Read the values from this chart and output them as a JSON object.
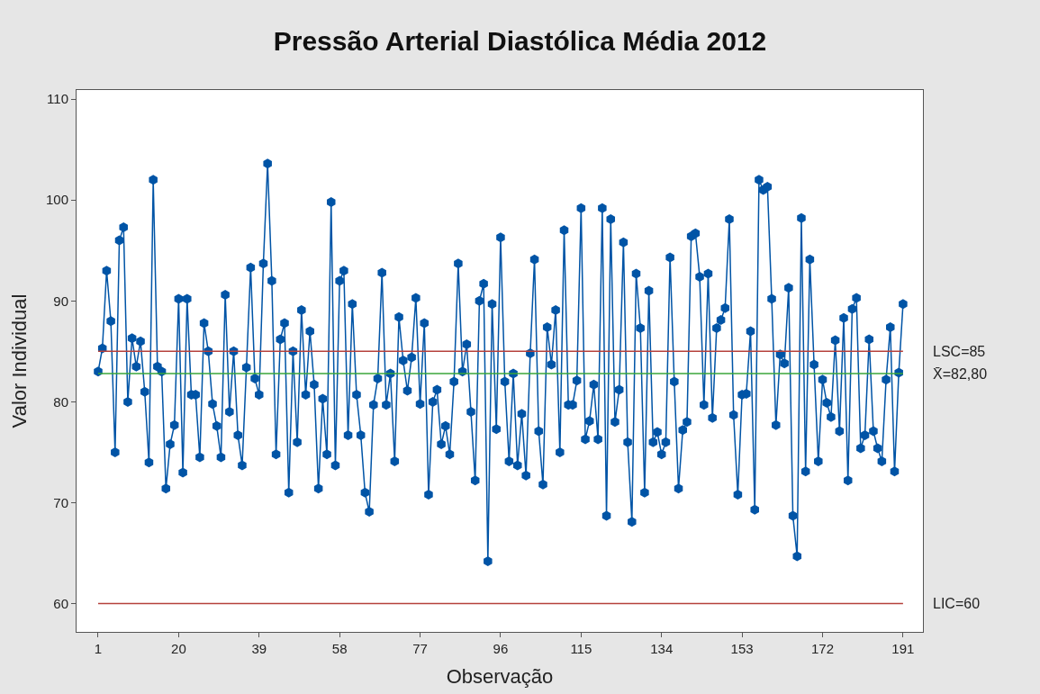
{
  "chart_data": {
    "type": "line",
    "title": "Pressão Arterial Diastólica Média 2012",
    "xlabel": "Observação",
    "ylabel": "Valor Individual",
    "x": [
      1,
      2,
      3,
      4,
      5,
      6,
      7,
      8,
      9,
      10,
      11,
      12,
      13,
      14,
      15,
      16,
      17,
      18,
      19,
      20,
      21,
      22,
      23,
      24,
      25,
      26,
      27,
      28,
      29,
      30,
      31,
      32,
      33,
      34,
      35,
      36,
      37,
      38,
      39,
      40,
      41,
      42,
      43,
      44,
      45,
      46,
      47,
      48,
      49,
      50,
      51,
      52,
      53,
      54,
      55,
      56,
      57,
      58,
      59,
      60,
      61,
      62,
      63,
      64,
      65,
      66,
      67,
      68,
      69,
      70,
      71,
      72,
      73,
      74,
      75,
      76,
      77,
      78,
      79,
      80,
      81,
      82,
      83,
      84,
      85,
      86,
      87,
      88,
      89,
      90,
      91,
      92,
      93,
      94,
      95,
      96,
      97,
      98,
      99,
      100,
      101,
      102,
      103,
      104,
      105,
      106,
      107,
      108,
      109,
      110,
      111,
      112,
      113,
      114,
      115,
      116,
      117,
      118,
      119,
      120,
      121,
      122,
      123,
      124,
      125,
      126,
      127,
      128,
      129,
      130,
      131,
      132,
      133,
      134,
      135,
      136,
      137,
      138,
      139,
      140,
      141,
      142,
      143,
      144,
      145,
      146,
      147,
      148,
      149,
      150,
      151,
      152,
      153,
      154,
      155,
      156,
      157,
      158,
      159,
      160,
      161,
      162,
      163,
      164,
      165,
      166,
      167,
      168,
      169,
      170,
      171,
      172,
      173,
      174,
      175,
      176,
      177,
      178,
      179,
      180,
      181,
      182,
      183,
      184,
      185,
      186,
      187,
      188,
      189,
      190,
      191
    ],
    "series": [
      {
        "color": "#0054a6",
        "values": [
          83,
          85.3,
          93,
          88,
          75,
          96,
          97.3,
          80,
          86.3,
          83.5,
          86,
          81,
          74,
          102,
          83.5,
          83,
          71.4,
          75.8,
          77.7,
          90.2,
          73,
          90.2,
          80.7,
          80.7,
          74.5,
          87.8,
          85,
          79.8,
          77.6,
          74.5,
          90.6,
          79,
          85,
          76.7,
          73.7,
          83.4,
          93.3,
          82.3,
          80.7,
          93.7,
          103.6,
          92,
          74.8,
          86.2,
          87.8,
          71,
          85,
          76,
          89.1,
          80.7,
          87,
          81.7,
          71.4,
          80.3,
          74.8,
          99.8,
          73.7,
          92,
          93,
          76.7,
          89.7,
          80.7,
          76.7,
          71,
          69.1,
          79.7,
          82.3,
          92.8,
          79.7,
          82.8,
          74.1,
          88.4,
          84.1,
          81.1,
          84.4,
          90.3,
          79.8,
          87.8,
          70.8,
          80,
          81.2,
          75.8,
          77.6,
          74.8,
          82,
          93.7,
          83,
          85.7,
          79,
          72.2,
          90,
          91.7,
          64.2,
          89.7,
          77.3,
          96.3,
          82,
          74.1,
          82.8,
          73.7,
          78.8,
          72.7,
          84.8,
          94.1,
          77.1,
          71.8,
          87.4,
          83.7,
          89.1,
          75,
          97,
          79.7,
          79.7,
          82.1,
          99.2,
          76.3,
          78.1,
          81.7,
          76.3,
          99.2,
          68.7,
          98.1,
          78,
          81.2,
          95.8,
          76,
          68.1,
          92.7,
          87.3,
          71,
          91,
          76,
          77,
          74.8,
          76,
          94.3,
          82,
          71.4,
          77.2,
          78,
          96.4,
          96.7,
          92.4,
          79.7,
          92.7,
          78.4,
          87.3,
          88.1,
          89.3,
          98.1,
          78.7,
          70.8,
          80.7,
          80.8,
          87,
          69.3,
          102,
          101,
          101.3,
          90.2,
          77.7,
          84.7,
          83.8,
          91.3,
          68.7,
          64.7,
          98.2,
          73.1,
          94.1,
          83.7,
          74.1,
          82.2,
          79.9,
          78.5,
          86.1,
          77.1,
          88.3,
          72.2,
          89.2,
          90.3,
          75.4,
          76.7,
          86.2,
          77.1,
          75.4,
          74.1,
          82.2,
          87.4,
          73.1,
          82.9,
          89.7
        ]
      }
    ],
    "xlim": [
      -4.1,
      195.7
    ],
    "xticks": [
      1,
      20,
      39,
      58,
      77,
      96,
      115,
      134,
      153,
      172,
      191
    ],
    "ylim": [
      57.2,
      110.9
    ],
    "yticks": [
      60,
      70,
      80,
      90,
      100,
      110
    ],
    "marker": "circle",
    "line_style": "solid",
    "ref_lines": [
      {
        "axis": "y",
        "value": 85,
        "label": "LSC=85",
        "color": "#b5413c"
      },
      {
        "axis": "y",
        "value": 82.8,
        "label": "X̄=82,80",
        "color": "#3aa63a"
      },
      {
        "axis": "y",
        "value": 60,
        "label": "LIC=60",
        "color": "#b5413c"
      }
    ]
  }
}
